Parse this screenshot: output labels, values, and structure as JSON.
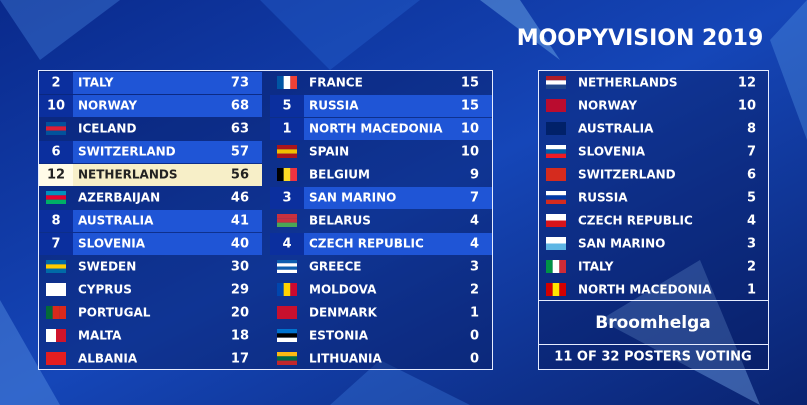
{
  "title": "MOOPYVISION 2019",
  "board": {
    "rows": [
      {
        "points": 2,
        "country": "ITALY",
        "score": 73
      },
      {
        "points": 10,
        "country": "NORWAY",
        "score": 68
      },
      {
        "points": null,
        "country": "ICELAND",
        "score": 63
      },
      {
        "points": 6,
        "country": "SWITZERLAND",
        "score": 57
      },
      {
        "points": 12,
        "country": "NETHERLANDS",
        "score": 56
      },
      {
        "points": null,
        "country": "AZERBAIJAN",
        "score": 46
      },
      {
        "points": 8,
        "country": "AUSTRALIA",
        "score": 41
      },
      {
        "points": 7,
        "country": "SLOVENIA",
        "score": 40
      },
      {
        "points": null,
        "country": "SWEDEN",
        "score": 30
      },
      {
        "points": null,
        "country": "CYPRUS",
        "score": 29
      },
      {
        "points": null,
        "country": "PORTUGAL",
        "score": 20
      },
      {
        "points": null,
        "country": "MALTA",
        "score": 18
      },
      {
        "points": null,
        "country": "ALBANIA",
        "score": 17
      },
      {
        "points": null,
        "country": "FRANCE",
        "score": 15
      },
      {
        "points": 5,
        "country": "RUSSIA",
        "score": 15
      },
      {
        "points": 1,
        "country": "NORTH MACEDONIA",
        "score": 10
      },
      {
        "points": null,
        "country": "SPAIN",
        "score": 10
      },
      {
        "points": null,
        "country": "BELGIUM",
        "score": 9
      },
      {
        "points": 3,
        "country": "SAN MARINO",
        "score": 7
      },
      {
        "points": null,
        "country": "BELARUS",
        "score": 4
      },
      {
        "points": 4,
        "country": "CZECH REPUBLIC",
        "score": 4
      },
      {
        "points": null,
        "country": "GREECE",
        "score": 3
      },
      {
        "points": null,
        "country": "MOLDOVA",
        "score": 2
      },
      {
        "points": null,
        "country": "DENMARK",
        "score": 1
      },
      {
        "points": null,
        "country": "ESTONIA",
        "score": 0
      },
      {
        "points": null,
        "country": "LITHUANIA",
        "score": 0
      }
    ]
  },
  "votes": {
    "rows": [
      {
        "country": "NETHERLANDS",
        "points": 12
      },
      {
        "country": "NORWAY",
        "points": 10
      },
      {
        "country": "AUSTRALIA",
        "points": 8
      },
      {
        "country": "SLOVENIA",
        "points": 7
      },
      {
        "country": "SWITZERLAND",
        "points": 6
      },
      {
        "country": "RUSSIA",
        "points": 5
      },
      {
        "country": "CZECH REPUBLIC",
        "points": 4
      },
      {
        "country": "SAN MARINO",
        "points": 3
      },
      {
        "country": "ITALY",
        "points": 2
      },
      {
        "country": "NORTH MACEDONIA",
        "points": 1
      }
    ],
    "voter": "Broomhelga",
    "status": "11 OF 32 POSTERS VOTING"
  }
}
